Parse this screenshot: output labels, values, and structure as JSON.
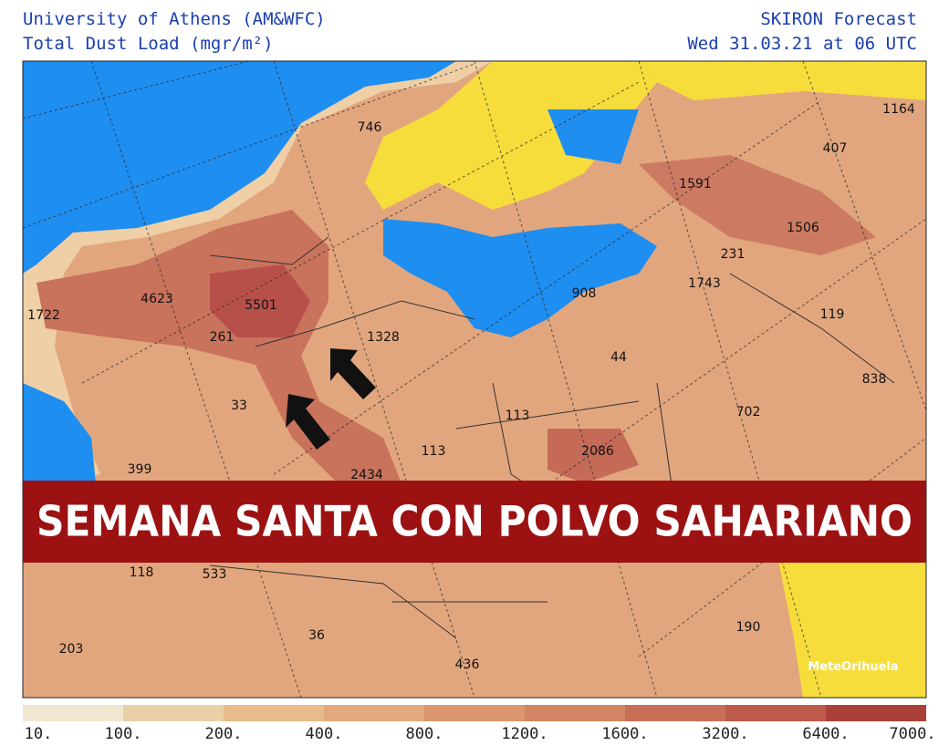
{
  "header": {
    "left_line1": "University of Athens (AM&WFC)",
    "left_line2": "Total Dust Load (mgr/m²)",
    "right_line1": "SKIRON Forecast",
    "right_line2": "Wed 31.03.21 at 06 UTC"
  },
  "map": {
    "labels": [
      "746",
      "1164",
      "407",
      "1591",
      "1506",
      "231",
      "1743",
      "119",
      "838",
      "908",
      "44",
      "702",
      "113",
      "2086",
      "4623",
      "5501",
      "1722",
      "261",
      "1328",
      "33",
      "399",
      "113",
      "2434",
      "118",
      "533",
      "36",
      "203",
      "436",
      "190"
    ]
  },
  "banner": {
    "text": "SEMANA SANTA CON POLVO SAHARIANO"
  },
  "watermark": {
    "text": "MeteOrihuela"
  },
  "colorbar": {
    "labels": [
      "10.",
      "100.",
      "200.",
      "400.",
      "800.",
      "1200.",
      "1600.",
      "3200.",
      "6400.",
      "7000."
    ],
    "colors": [
      "#f1e6cf",
      "#ead0a6",
      "#e7bb8c",
      "#e2a97c",
      "#dc9770",
      "#d38664",
      "#c96f58",
      "#bd5a4b",
      "#ab4038"
    ]
  }
}
